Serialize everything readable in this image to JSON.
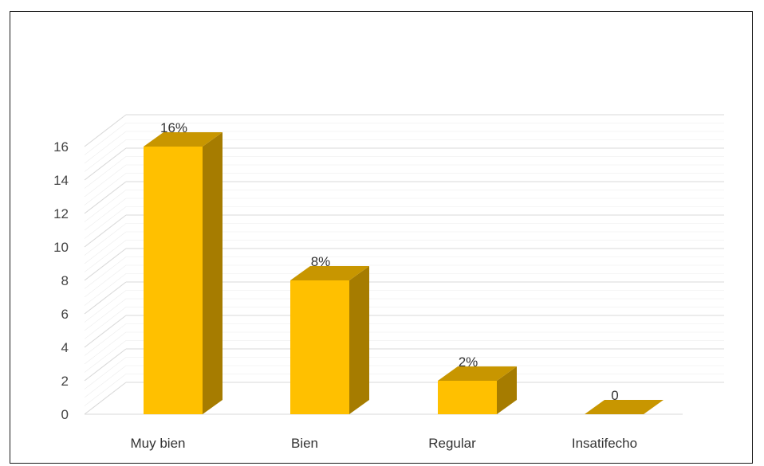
{
  "chart_data": {
    "type": "bar",
    "style": "3d-column",
    "categories": [
      "Muy bien",
      "Bien",
      "Regular",
      "Insatifecho"
    ],
    "values": [
      16,
      8,
      2,
      0
    ],
    "data_labels": [
      "16%",
      "8%",
      "2%",
      "0"
    ],
    "ylim": [
      0,
      16
    ],
    "yticks": [
      0,
      2,
      4,
      6,
      8,
      10,
      12,
      14,
      16
    ],
    "grid": true,
    "legend": "none",
    "colors": {
      "front": "#ffc000",
      "side": "#a67c00",
      "top": "#c89600",
      "grid": "#d9d9d9"
    }
  }
}
